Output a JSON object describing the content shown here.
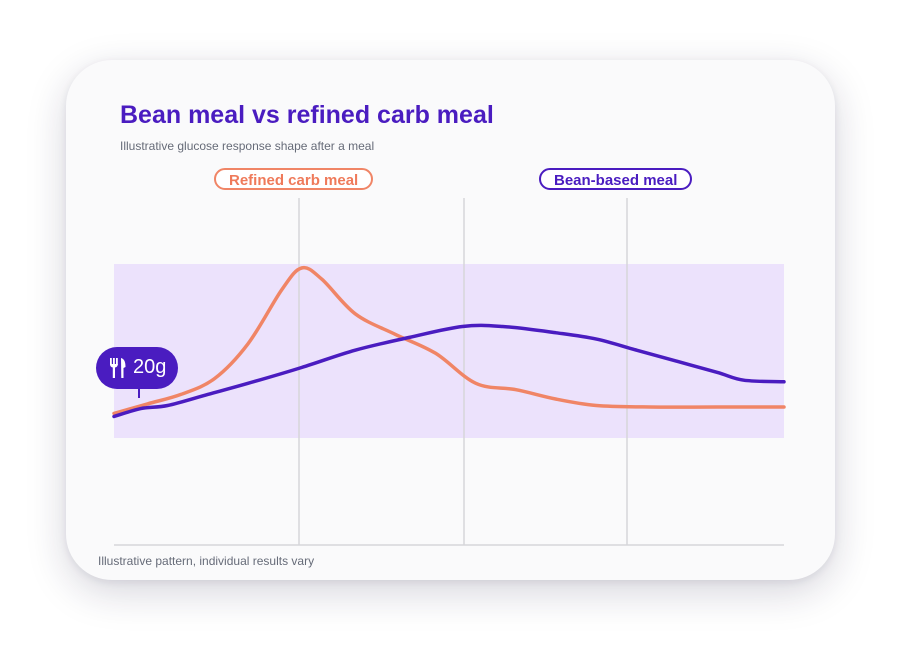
{
  "header": {
    "title": "Bean meal vs refined carb meal",
    "subtitle": "Illustrative glucose response shape after a meal"
  },
  "footer": {
    "note": "Illustrative pattern, individual results vary"
  },
  "meal_marker": {
    "icon": "fork-knife-icon",
    "label": "20g"
  },
  "colors": {
    "title": "#4a1cc0",
    "bean": "#4a1cc0",
    "refined": "#f08566",
    "target_band": "#ece2fc",
    "grid": "#d6d6da"
  },
  "chart_data": {
    "type": "line",
    "title": "Bean meal vs refined carb meal",
    "subtitle": "Illustrative glucose response shape after a meal",
    "xlabel": "",
    "ylabel": "",
    "grid": "vertical lines only",
    "legend_placement": "top",
    "target_band": true,
    "series": [
      {
        "name": "Refined carb meal",
        "color": "#f08566",
        "points": [
          [
            0,
            8
          ],
          [
            5,
            14
          ],
          [
            10,
            20
          ],
          [
            15,
            30
          ],
          [
            20,
            52
          ],
          [
            25,
            86
          ],
          [
            28,
            100
          ],
          [
            31,
            93
          ],
          [
            36,
            71
          ],
          [
            42,
            58
          ],
          [
            48,
            46
          ],
          [
            54,
            27
          ],
          [
            60,
            23
          ],
          [
            66,
            17
          ],
          [
            72,
            13
          ],
          [
            80,
            12
          ],
          [
            90,
            12
          ],
          [
            100,
            12
          ]
        ]
      },
      {
        "name": "Bean-based meal",
        "color": "#4a1cc0",
        "points": [
          [
            0,
            6
          ],
          [
            4,
            11
          ],
          [
            8,
            13
          ],
          [
            14,
            20
          ],
          [
            20,
            27
          ],
          [
            28,
            37
          ],
          [
            36,
            48
          ],
          [
            44,
            56
          ],
          [
            52,
            63
          ],
          [
            58,
            63
          ],
          [
            66,
            59
          ],
          [
            72,
            55
          ],
          [
            78,
            48
          ],
          [
            84,
            41
          ],
          [
            90,
            34
          ],
          [
            94,
            29
          ],
          [
            100,
            28
          ]
        ]
      }
    ]
  }
}
